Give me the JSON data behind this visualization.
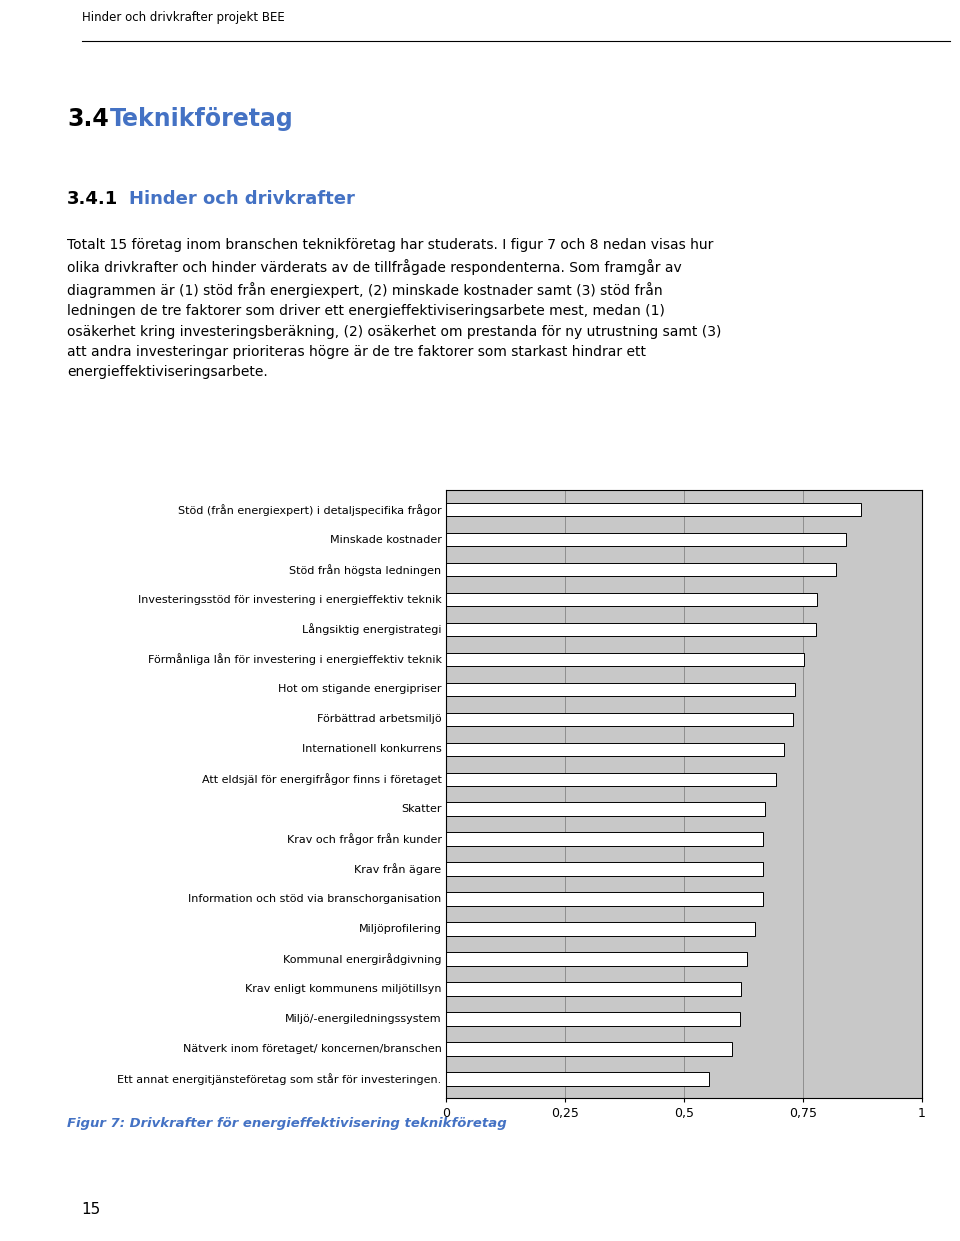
{
  "categories": [
    "Stöd (från energiexpert) i detaljspecifika frågor",
    "Minskade kostnader",
    "Stöd från högsta ledningen",
    "Investeringsstöd för investering i energieffektiv teknik",
    "Långsiktig energistrategi",
    "Förmånliga lån för investering i energieffektiv teknik",
    "Hot om stigande energipriser",
    "Förbättrad arbetsmiljö",
    "Internationell konkurrens",
    "Att eldsjäl för energifrågor finns i företaget",
    "Skatter",
    "Krav och frågor från kunder",
    "Krav från ägare",
    "Information och stöd via branschorganisation",
    "Miljöprofilering",
    "Kommunal energirådgivning",
    "Krav enligt kommunens miljötillsyn",
    "Miljö/-energiledningssystem",
    "Nätverk inom företaget/ koncernen/branschen",
    "Ett annat energitjänsteföretag som står för investeringen."
  ],
  "values": [
    0.873,
    0.84,
    0.82,
    0.78,
    0.778,
    0.752,
    0.733,
    0.73,
    0.71,
    0.693,
    0.67,
    0.667,
    0.667,
    0.667,
    0.65,
    0.633,
    0.62,
    0.618,
    0.6,
    0.553
  ],
  "bar_color": "#ffffff",
  "bar_edge_color": "#000000",
  "bar_linewidth": 0.7,
  "background_color": "#ffffff",
  "xlim": [
    0,
    1
  ],
  "xticks": [
    0,
    0.25,
    0.5,
    0.75,
    1
  ],
  "xticklabels": [
    "0",
    "0,25",
    "0,5",
    "0,75",
    "1"
  ],
  "chart_bg_color": "#c8c8c8",
  "header_text": "Hinder och drivkrafter projekt BEE",
  "section_number": "3.4",
  "section_title": "Teknikföretag",
  "section_title_color": "#4472c4",
  "subsection_number": "3.4.1",
  "subsection_title": "Hinder och drivkrafter",
  "subsection_title_color": "#4472c4",
  "body_text": "Totalt 15 företag inom branschen teknikföretag har studerats. I figur 7 och 8 nedan visas hur\nolika drivkrafter och hinder värderats av de tillfrågade respondenterna. Som framgår av\ndiagrammen är (1) stöd från energiexpert, (2) minskade kostnader samt (3) stöd från\nledningen de tre faktorer som driver ett energieffektiviseringsarbete mest, medan (1)\nosäkerhet kring investeringsberäkning, (2) osäkerhet om prestanda för ny utrustning samt (3)\natt andra investeringar prioriteras högre är de tre faktorer som starkast hindrar ett\nenergieffektiviseringsarbete.",
  "figure_caption": "Figur 7: Drivkrafter för energieffektivisering teknikföretag",
  "figure_caption_color": "#4472c4",
  "page_number": "15",
  "label_fontsize": 8.0,
  "tick_fontsize": 9,
  "bar_height": 0.45
}
